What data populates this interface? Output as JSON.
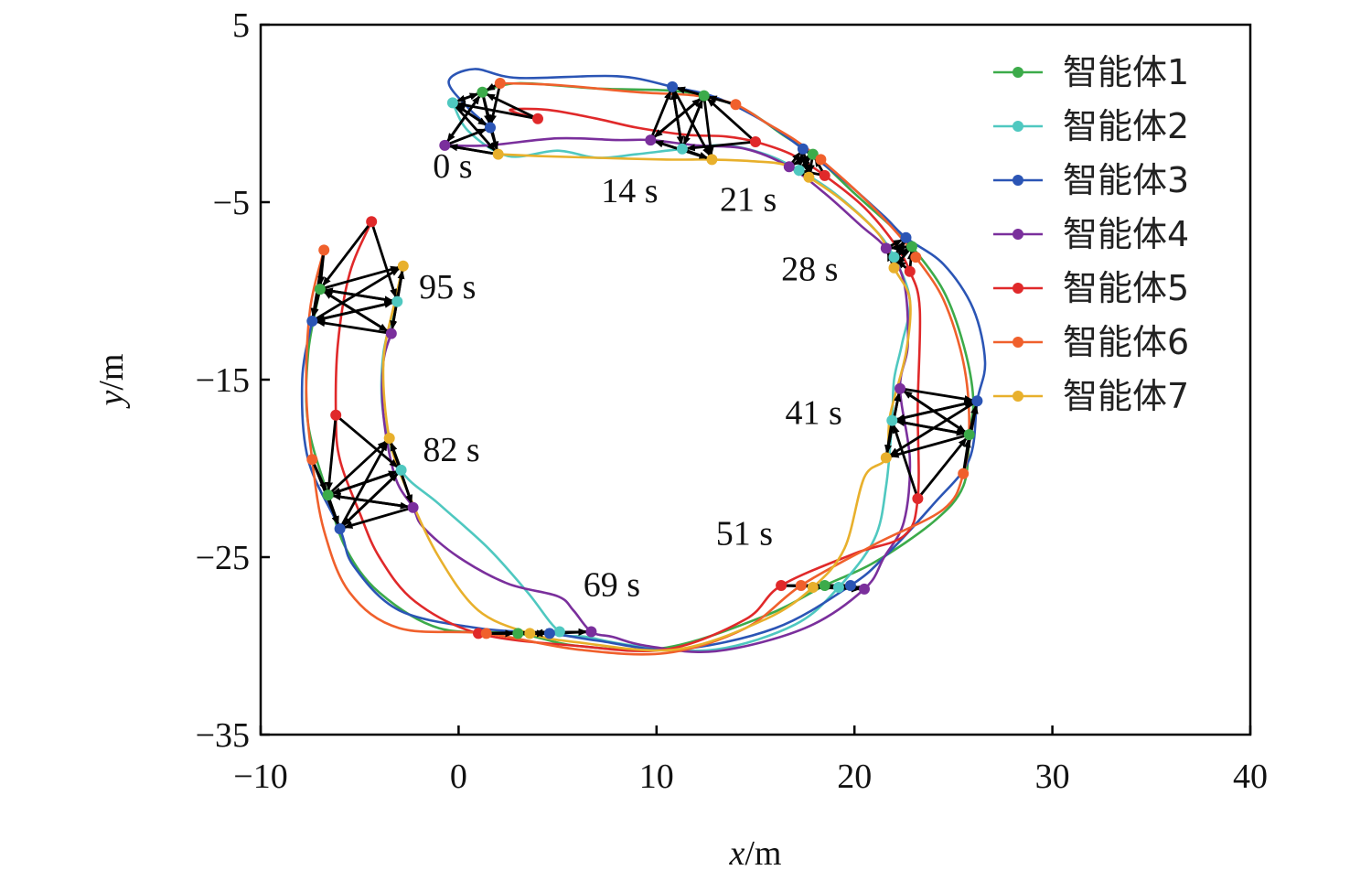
{
  "chart_data": {
    "type": "line",
    "x_axis": {
      "label_var": "x",
      "label_unit": "/m",
      "range": [
        -10,
        40
      ],
      "ticks": [
        -10,
        0,
        10,
        20,
        30,
        40
      ],
      "tick_labels": [
        "−10",
        "0",
        "10",
        "20",
        "30",
        "40"
      ]
    },
    "y_axis": {
      "label_var": "y",
      "label_unit": "/m",
      "range": [
        -35,
        5
      ],
      "ticks": [
        5,
        -5,
        -15,
        -25,
        -35
      ],
      "tick_labels": [
        "5",
        "−5",
        "−15",
        "−25",
        "−35"
      ]
    },
    "grid": false,
    "legend_position": "top-right",
    "series": [
      {
        "name": "智能体1",
        "color": "#3cab4a"
      },
      {
        "name": "智能体2",
        "color": "#4fc8c0"
      },
      {
        "name": "智能体3",
        "color": "#2b55b5"
      },
      {
        "name": "智能体4",
        "color": "#7a2f9c"
      },
      {
        "name": "智能体5",
        "color": "#e0292a"
      },
      {
        "name": "智能体6",
        "color": "#f0602c"
      },
      {
        "name": "智能体7",
        "color": "#e8b02c"
      }
    ],
    "annotations": [
      "0 s",
      "14 s",
      "21 s",
      "28 s",
      "41 s",
      "51 s",
      "69 s",
      "82 s",
      "95 s"
    ],
    "snapshots": [
      {
        "t": "0 s",
        "label_at": [
          -1.3,
          -3.6
        ],
        "points": [
          [
            1.2,
            1.2
          ],
          [
            -0.3,
            0.6
          ],
          [
            1.6,
            -0.8
          ],
          [
            -0.7,
            -1.8
          ],
          [
            4.0,
            -0.3
          ],
          [
            2.1,
            1.7
          ],
          [
            2.0,
            -2.3
          ]
        ]
      },
      {
        "t": "14 s",
        "label_at": [
          7.2,
          -5.0
        ],
        "points": [
          [
            12.4,
            1.0
          ],
          [
            11.3,
            -2.0
          ],
          [
            10.8,
            1.5
          ],
          [
            9.7,
            -1.5
          ],
          [
            15.0,
            -1.6
          ],
          [
            14.0,
            0.5
          ],
          [
            12.8,
            -2.6
          ]
        ]
      },
      {
        "t": "21 s",
        "label_at": [
          13.2,
          -5.5
        ],
        "points": [
          [
            17.9,
            -2.3
          ],
          [
            17.2,
            -3.2
          ],
          [
            17.4,
            -2.0
          ],
          [
            16.7,
            -3.0
          ],
          [
            18.5,
            -3.5
          ],
          [
            18.3,
            -2.6
          ],
          [
            17.7,
            -3.6
          ]
        ]
      },
      {
        "t": "28 s",
        "label_at": [
          16.3,
          -9.4
        ],
        "points": [
          [
            22.9,
            -7.5
          ],
          [
            22.0,
            -8.1
          ],
          [
            22.6,
            -7.0
          ],
          [
            21.6,
            -7.6
          ],
          [
            22.8,
            -8.9
          ],
          [
            23.1,
            -8.1
          ],
          [
            22.0,
            -8.7
          ]
        ]
      },
      {
        "t": "41 s",
        "label_at": [
          16.5,
          -17.5
        ],
        "points": [
          [
            25.8,
            -18.1
          ],
          [
            21.9,
            -17.3
          ],
          [
            26.2,
            -16.2
          ],
          [
            22.3,
            -15.5
          ],
          [
            23.2,
            -21.7
          ],
          [
            25.5,
            -20.3
          ],
          [
            21.6,
            -19.4
          ]
        ]
      },
      {
        "t": "51 s",
        "label_at": [
          13.0,
          -24.3
        ],
        "points": [
          [
            18.5,
            -26.6
          ],
          [
            19.2,
            -26.7
          ],
          [
            19.8,
            -26.6
          ],
          [
            20.5,
            -26.8
          ],
          [
            16.3,
            -26.6
          ],
          [
            17.3,
            -26.6
          ],
          [
            17.9,
            -26.7
          ]
        ]
      },
      {
        "t": "69 s",
        "label_at": [
          6.3,
          -27.2
        ],
        "points": [
          [
            3.0,
            -29.3
          ],
          [
            5.1,
            -29.2
          ],
          [
            4.6,
            -29.3
          ],
          [
            6.7,
            -29.2
          ],
          [
            1.0,
            -29.3
          ],
          [
            1.4,
            -29.3
          ],
          [
            3.6,
            -29.3
          ]
        ]
      },
      {
        "t": "82 s",
        "label_at": [
          -1.8,
          -19.6
        ],
        "points": [
          [
            -6.6,
            -21.5
          ],
          [
            -2.9,
            -20.1
          ],
          [
            -6.0,
            -23.4
          ],
          [
            -2.3,
            -22.2
          ],
          [
            -6.2,
            -17.0
          ],
          [
            -7.4,
            -19.5
          ],
          [
            -3.5,
            -18.3
          ]
        ]
      },
      {
        "t": "95 s",
        "label_at": [
          -2.0,
          -10.4
        ],
        "points": [
          [
            -7.0,
            -9.9
          ],
          [
            -3.1,
            -10.6
          ],
          [
            -7.4,
            -11.7
          ],
          [
            -3.4,
            -12.4
          ],
          [
            -4.4,
            -6.1
          ],
          [
            -6.8,
            -7.7
          ],
          [
            -2.8,
            -8.6
          ]
        ]
      }
    ],
    "trajectories": [
      [
        [
          1.2,
          1.2
        ],
        [
          3.0,
          1.7
        ],
        [
          7.0,
          1.4
        ],
        [
          10.5,
          1.3
        ],
        [
          12.4,
          1.0
        ],
        [
          14.5,
          0.2
        ],
        [
          16.5,
          -1.3
        ],
        [
          17.9,
          -2.3
        ],
        [
          20.0,
          -4.5
        ],
        [
          22.0,
          -6.5
        ],
        [
          22.9,
          -7.5
        ],
        [
          24.5,
          -10.0
        ],
        [
          25.5,
          -13.0
        ],
        [
          26.0,
          -16.0
        ],
        [
          25.8,
          -18.1
        ],
        [
          25.5,
          -21.0
        ],
        [
          24.0,
          -23.0
        ],
        [
          21.0,
          -25.3
        ],
        [
          18.5,
          -26.6
        ],
        [
          15.5,
          -28.3
        ],
        [
          10.5,
          -30.1
        ],
        [
          6.0,
          -30.0
        ],
        [
          3.0,
          -29.3
        ],
        [
          -1.0,
          -29.0
        ],
        [
          -4.0,
          -27.0
        ],
        [
          -5.7,
          -24.5
        ],
        [
          -6.6,
          -21.5
        ],
        [
          -7.6,
          -17.5
        ],
        [
          -7.6,
          -13.5
        ],
        [
          -7.0,
          -9.9
        ]
      ],
      [
        [
          -0.3,
          0.6
        ],
        [
          0.5,
          -1.0
        ],
        [
          2.5,
          -2.4
        ],
        [
          5.0,
          -2.1
        ],
        [
          7.0,
          -2.5
        ],
        [
          9.0,
          -2.3
        ],
        [
          11.3,
          -2.0
        ],
        [
          13.5,
          -1.8
        ],
        [
          15.5,
          -2.3
        ],
        [
          17.2,
          -3.2
        ],
        [
          19.0,
          -4.5
        ],
        [
          21.0,
          -6.5
        ],
        [
          22.0,
          -8.1
        ],
        [
          22.8,
          -10.5
        ],
        [
          22.4,
          -13.0
        ],
        [
          22.0,
          -15.0
        ],
        [
          21.9,
          -17.3
        ],
        [
          21.6,
          -21.0
        ],
        [
          21.0,
          -24.0
        ],
        [
          19.2,
          -26.7
        ],
        [
          17.0,
          -28.8
        ],
        [
          13.0,
          -30.2
        ],
        [
          9.0,
          -30.0
        ],
        [
          6.5,
          -29.5
        ],
        [
          5.1,
          -29.2
        ],
        [
          3.5,
          -27.0
        ],
        [
          1.5,
          -24.5
        ],
        [
          -1.0,
          -22.0
        ],
        [
          -2.9,
          -20.1
        ],
        [
          -3.8,
          -17.0
        ],
        [
          -3.8,
          -13.5
        ],
        [
          -3.1,
          -10.6
        ]
      ],
      [
        [
          1.6,
          -0.8
        ],
        [
          0.5,
          0.3
        ],
        [
          -0.5,
          1.8
        ],
        [
          0.8,
          2.5
        ],
        [
          3.0,
          2.0
        ],
        [
          8.0,
          2.1
        ],
        [
          10.8,
          1.5
        ],
        [
          13.0,
          0.9
        ],
        [
          15.5,
          -0.5
        ],
        [
          17.4,
          -2.0
        ],
        [
          19.5,
          -3.8
        ],
        [
          21.5,
          -5.8
        ],
        [
          22.6,
          -7.0
        ],
        [
          24.5,
          -8.5
        ],
        [
          26.0,
          -11.0
        ],
        [
          26.6,
          -14.0
        ],
        [
          26.2,
          -16.2
        ],
        [
          25.8,
          -19.5
        ],
        [
          24.0,
          -22.0
        ],
        [
          21.5,
          -25.0
        ],
        [
          19.8,
          -26.6
        ],
        [
          16.0,
          -29.0
        ],
        [
          11.0,
          -30.2
        ],
        [
          7.0,
          -29.7
        ],
        [
          4.6,
          -29.3
        ],
        [
          1.0,
          -29.0
        ],
        [
          -3.0,
          -28.0
        ],
        [
          -5.3,
          -25.5
        ],
        [
          -6.0,
          -23.4
        ],
        [
          -7.6,
          -19.5
        ],
        [
          -7.9,
          -15.0
        ],
        [
          -7.4,
          -11.7
        ]
      ],
      [
        [
          -0.7,
          -1.8
        ],
        [
          1.5,
          -1.8
        ],
        [
          5.0,
          -1.4
        ],
        [
          8.0,
          -1.5
        ],
        [
          9.7,
          -1.5
        ],
        [
          12.0,
          -1.8
        ],
        [
          14.5,
          -2.0
        ],
        [
          16.7,
          -3.0
        ],
        [
          18.5,
          -4.5
        ],
        [
          20.3,
          -6.3
        ],
        [
          21.6,
          -7.6
        ],
        [
          22.5,
          -9.5
        ],
        [
          22.7,
          -13.0
        ],
        [
          22.3,
          -15.5
        ],
        [
          22.8,
          -19.5
        ],
        [
          22.5,
          -23.0
        ],
        [
          21.5,
          -25.0
        ],
        [
          20.5,
          -26.8
        ],
        [
          17.5,
          -29.0
        ],
        [
          13.0,
          -30.3
        ],
        [
          9.5,
          -30.0
        ],
        [
          7.8,
          -29.5
        ],
        [
          6.7,
          -29.2
        ],
        [
          5.8,
          -28.0
        ],
        [
          5.0,
          -27.2
        ],
        [
          2.5,
          -26.5
        ],
        [
          0.0,
          -25.0
        ],
        [
          -1.8,
          -23.3
        ],
        [
          -2.3,
          -22.2
        ],
        [
          -3.2,
          -20.5
        ],
        [
          -3.8,
          -17.0
        ],
        [
          -3.8,
          -14.0
        ],
        [
          -3.4,
          -12.4
        ]
      ],
      [
        [
          4.0,
          -0.3
        ],
        [
          2.6,
          0.2
        ],
        [
          4.5,
          0.2
        ],
        [
          7.0,
          -0.3
        ],
        [
          9.0,
          -0.8
        ],
        [
          11.5,
          -1.2
        ],
        [
          13.5,
          -1.3
        ],
        [
          15.0,
          -1.6
        ],
        [
          16.8,
          -2.3
        ],
        [
          18.5,
          -3.5
        ],
        [
          20.5,
          -5.3
        ],
        [
          22.0,
          -7.3
        ],
        [
          22.8,
          -8.9
        ],
        [
          23.3,
          -11.0
        ],
        [
          23.2,
          -16.5
        ],
        [
          23.2,
          -21.7
        ],
        [
          22.5,
          -23.8
        ],
        [
          20.0,
          -24.8
        ],
        [
          16.3,
          -26.6
        ],
        [
          14.5,
          -28.5
        ],
        [
          10.5,
          -30.2
        ],
        [
          6.0,
          -30.0
        ],
        [
          1.0,
          -29.3
        ],
        [
          -2.2,
          -27.5
        ],
        [
          -4.0,
          -25.0
        ],
        [
          -5.0,
          -22.5
        ],
        [
          -6.0,
          -19.5
        ],
        [
          -6.2,
          -17.0
        ],
        [
          -6.1,
          -13.0
        ],
        [
          -5.5,
          -9.0
        ],
        [
          -4.4,
          -6.1
        ]
      ],
      [
        [
          2.1,
          1.7
        ],
        [
          5.0,
          1.6
        ],
        [
          9.0,
          1.2
        ],
        [
          12.0,
          1.0
        ],
        [
          14.0,
          0.5
        ],
        [
          15.5,
          -0.5
        ],
        [
          17.0,
          -1.5
        ],
        [
          18.3,
          -2.6
        ],
        [
          20.5,
          -4.8
        ],
        [
          22.2,
          -6.8
        ],
        [
          23.1,
          -8.1
        ],
        [
          24.5,
          -10.5
        ],
        [
          25.5,
          -14.0
        ],
        [
          25.8,
          -17.5
        ],
        [
          25.5,
          -20.3
        ],
        [
          24.5,
          -22.3
        ],
        [
          21.0,
          -24.3
        ],
        [
          17.3,
          -26.6
        ],
        [
          14.5,
          -29.0
        ],
        [
          10.5,
          -30.4
        ],
        [
          6.0,
          -30.2
        ],
        [
          1.4,
          -29.3
        ],
        [
          -3.0,
          -29.0
        ],
        [
          -5.5,
          -27.0
        ],
        [
          -6.8,
          -23.5
        ],
        [
          -7.4,
          -19.5
        ],
        [
          -7.7,
          -15.5
        ],
        [
          -7.5,
          -11.0
        ],
        [
          -6.8,
          -7.7
        ]
      ],
      [
        [
          2.0,
          -2.3
        ],
        [
          4.0,
          -2.4
        ],
        [
          7.0,
          -2.5
        ],
        [
          10.5,
          -2.6
        ],
        [
          12.8,
          -2.6
        ],
        [
          15.0,
          -2.7
        ],
        [
          16.5,
          -2.9
        ],
        [
          17.7,
          -3.6
        ],
        [
          19.5,
          -5.0
        ],
        [
          21.3,
          -6.9
        ],
        [
          22.0,
          -8.7
        ],
        [
          22.8,
          -10.5
        ],
        [
          22.6,
          -13.5
        ],
        [
          21.8,
          -17.0
        ],
        [
          21.6,
          -19.4
        ],
        [
          20.5,
          -20.5
        ],
        [
          19.5,
          -24.5
        ],
        [
          17.9,
          -26.7
        ],
        [
          15.5,
          -28.5
        ],
        [
          11.0,
          -30.2
        ],
        [
          6.0,
          -29.8
        ],
        [
          3.6,
          -29.3
        ],
        [
          1.0,
          -28.0
        ],
        [
          -1.0,
          -25.0
        ],
        [
          -2.5,
          -21.5
        ],
        [
          -3.5,
          -18.3
        ],
        [
          -3.8,
          -14.0
        ],
        [
          -3.2,
          -10.5
        ],
        [
          -2.8,
          -8.6
        ]
      ]
    ],
    "consensus_edges": [
      [
        0,
        6
      ],
      [
        1,
        6
      ],
      [
        2,
        6
      ],
      [
        6,
        3
      ],
      [
        4,
        0
      ],
      [
        5,
        0
      ],
      [
        0,
        1
      ],
      [
        3,
        2
      ],
      [
        0,
        3
      ],
      [
        1,
        2
      ],
      [
        2,
        1
      ],
      [
        3,
        0
      ],
      [
        4,
        1
      ],
      [
        5,
        2
      ],
      [
        6,
        3
      ],
      [
        0,
        2
      ],
      [
        1,
        0
      ]
    ]
  }
}
